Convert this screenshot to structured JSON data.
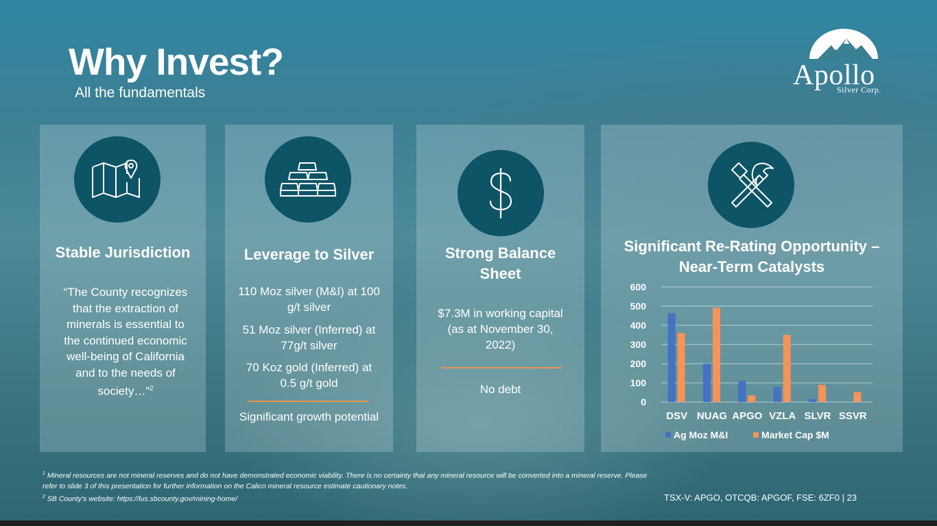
{
  "slide": {
    "title": "Why Invest?",
    "subtitle": "All the fundamentals"
  },
  "logo": {
    "name": "Apollo",
    "sub": "Silver Corp."
  },
  "cards": [
    {
      "icon": "map-pin-icon",
      "heading": "Stable Jurisdiction",
      "quote": "“The County recognizes that the extraction of minerals is essential to the continued economic well-being of California and to the needs of society…”",
      "quote_sup": "2"
    },
    {
      "icon": "gold-bars-icon",
      "heading": "Leverage to Silver",
      "items": [
        "110 Moz silver (M&I) at 100 g/t silver",
        "51 Moz silver (Inferred) at 77g/t silver",
        "70 Koz gold (Inferred) at 0.5 g/t gold"
      ],
      "footer": "Significant growth potential"
    },
    {
      "icon": "dollar-icon",
      "heading": "Strong Balance Sheet",
      "items": [
        "$7.3M in working capital (as at November 30, 2022)"
      ],
      "footer": "No debt"
    },
    {
      "icon": "hammer-pick-icon",
      "heading": "Significant Re-Rating Opportunity – Near-Term Catalysts"
    }
  ],
  "chart_data": {
    "type": "bar",
    "categories": [
      "DSV",
      "NUAG",
      "APGO",
      "VZLA",
      "SLVR",
      "SSVR"
    ],
    "series": [
      {
        "name": "Ag Moz M&I",
        "values": [
          463,
          200,
          110,
          78,
          15,
          0
        ],
        "color": "#4472c4"
      },
      {
        "name": "Market Cap $M",
        "values": [
          360,
          492,
          35,
          350,
          90,
          52
        ],
        "color": "#f4935a"
      }
    ],
    "ylim": [
      0,
      600
    ],
    "yticks": [
      "0",
      "100",
      "200",
      "300",
      "400",
      "500",
      "600"
    ],
    "grid": true,
    "legend": "bottom"
  },
  "footnotes": {
    "fn1_mark": "1",
    "fn1": "Mineral resources are not mineral reserves and do not have demonstrated economic viability. There is no certainty that any mineral resource will be converted into a mineral reserve. Please refer to slide 3 of this presentation for further information on the Calico mineral resource estimate cautionary notes.",
    "fn2_mark": "2",
    "fn2": "SB County's website: https://lus.sbcounty.gov/mining-home/"
  },
  "ticker": "TSX-V: APGO, OTCQB: APGOF, FSE: 6ZF0 | 23"
}
